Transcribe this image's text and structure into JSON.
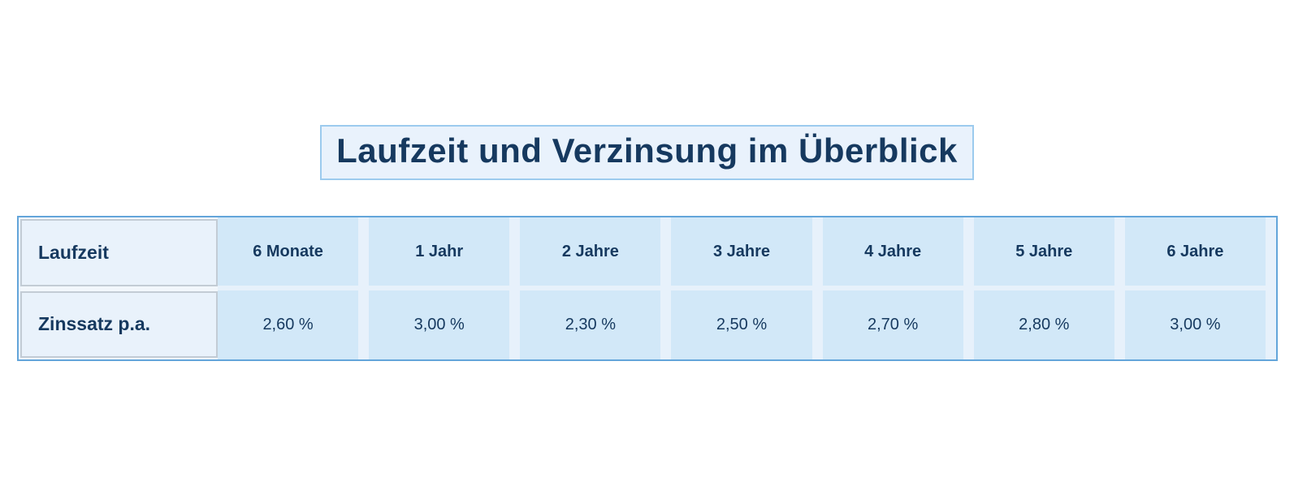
{
  "title": {
    "text": "Laufzeit und Verzinsung im Überblick"
  },
  "table": {
    "row_headers": [
      "Laufzeit",
      "Zinssatz p.a."
    ],
    "columns": [
      "6 Monate",
      "1 Jahr",
      "2 Jahre",
      "3 Jahre",
      "4 Jahre",
      "5 Jahre",
      "6 Jahre"
    ],
    "rates": [
      "2,60 %",
      "3,00 %",
      "2,30 %",
      "2,50 %",
      "2,70 %",
      "2,80 %",
      "3,00 %"
    ]
  },
  "colors": {
    "text_navy": "#16395f",
    "table_border": "#63a5da",
    "data_cell_fill": "#d2e8f8",
    "gutter_fill": "#e7f1fb",
    "row_header_fill": "#e9f2fb",
    "row_header_border": "#c3ccd5",
    "title_fill": "#e9f2fc",
    "title_border": "#9ccbee",
    "page_background": "#ffffff"
  },
  "chart_data": {
    "type": "table",
    "title": "Laufzeit und Verzinsung im Überblick",
    "columns": [
      "Laufzeit",
      "6 Monate",
      "1 Jahr",
      "2 Jahre",
      "3 Jahre",
      "4 Jahre",
      "5 Jahre",
      "6 Jahre"
    ],
    "rows": [
      [
        "Zinssatz p.a.",
        "2,60 %",
        "3,00 %",
        "2,30 %",
        "2,50 %",
        "2,70 %",
        "2,80 %",
        "3,00 %"
      ]
    ]
  }
}
